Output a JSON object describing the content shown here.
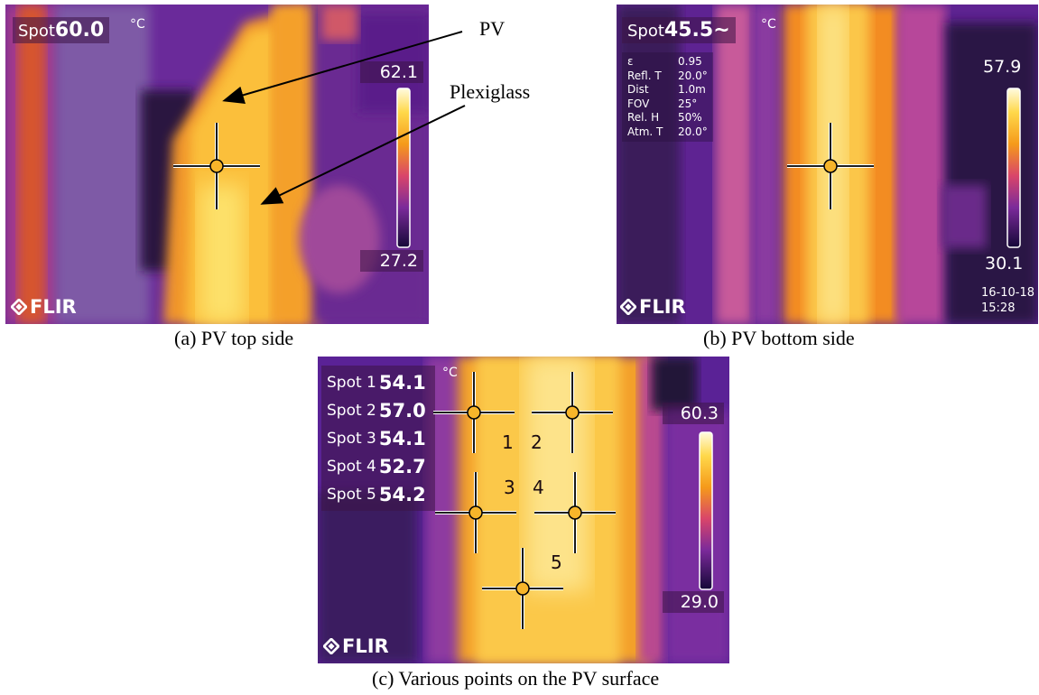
{
  "panel_a": {
    "spot_label": "Spot",
    "spot_value": "60.0",
    "unit": "°C",
    "scale_max": "62.1",
    "scale_min": "27.2",
    "logo": "FLIR",
    "annotations": {
      "pv": "PV",
      "plexiglass": "Plexiglass"
    },
    "caption": "(a) PV top side"
  },
  "panel_b": {
    "spot_label": "Spot",
    "spot_value": "45.5~",
    "unit": "°C",
    "params": [
      {
        "key": "ε",
        "value": "0.95"
      },
      {
        "key": "Refl. T",
        "value": "20.0°"
      },
      {
        "key": "Dist",
        "value": "1.0m"
      },
      {
        "key": "FOV",
        "value": "25°"
      },
      {
        "key": "Rel. H",
        "value": "50%"
      },
      {
        "key": "Atm. T",
        "value": "20.0°"
      }
    ],
    "scale_max": "57.9",
    "scale_min": "30.1",
    "date": "16-10-18",
    "time": "15:28",
    "logo": "FLIR",
    "caption": "(b) PV bottom side"
  },
  "panel_c": {
    "unit": "°C",
    "spots": [
      {
        "label": "Spot 1",
        "value": "54.1"
      },
      {
        "label": "Spot 2",
        "value": "57.0"
      },
      {
        "label": "Spot 3",
        "value": "54.1"
      },
      {
        "label": "Spot 4",
        "value": "52.7"
      },
      {
        "label": "Spot 5",
        "value": "54.2"
      }
    ],
    "spot_numbers": [
      "1",
      "2",
      "3",
      "4",
      "5"
    ],
    "scale_max": "60.3",
    "scale_min": "29.0",
    "logo": "FLIR",
    "caption": "(c) Various points on the PV surface"
  },
  "colors": {
    "cold": "#2a0f5a",
    "mid": "#b8307a",
    "warm": "#f08a1a",
    "hot": "#ffe58a"
  }
}
